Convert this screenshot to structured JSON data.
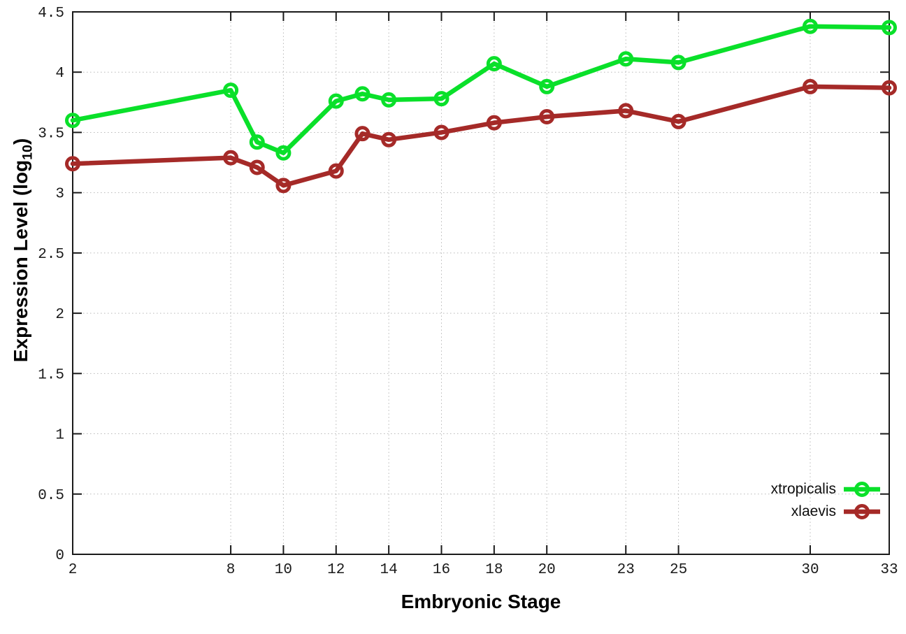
{
  "chart_data": {
    "type": "line",
    "title": "",
    "xlabel": "Embryonic Stage",
    "ylabel_prefix": "Expression Level (log",
    "ylabel_sub": "10",
    "ylabel_suffix": ")",
    "x": [
      2,
      8,
      9,
      10,
      12,
      13,
      14,
      16,
      18,
      20,
      23,
      25,
      30,
      33
    ],
    "xtick_labels": [
      "2",
      "8",
      "10",
      "12",
      "14",
      "16",
      "18",
      "20",
      "23",
      "25",
      "30",
      "33"
    ],
    "xticks": [
      2,
      8,
      10,
      12,
      14,
      16,
      18,
      20,
      23,
      25,
      30,
      33
    ],
    "ytick_labels": [
      "0",
      "0.5",
      "1",
      "1.5",
      "2",
      "2.5",
      "3",
      "3.5",
      "4",
      "4.5"
    ],
    "yticks": [
      0,
      0.5,
      1,
      1.5,
      2,
      2.5,
      3,
      3.5,
      4,
      4.5
    ],
    "xlim": [
      2,
      33
    ],
    "ylim": [
      0,
      4.5
    ],
    "grid": true,
    "legend_position": "inside-bottom-right",
    "series": [
      {
        "name": "xtropicalis",
        "color": "#0ae02a",
        "values": [
          3.6,
          3.85,
          3.42,
          3.33,
          3.76,
          3.82,
          3.77,
          3.78,
          4.07,
          3.88,
          4.11,
          4.08,
          4.38,
          4.37
        ]
      },
      {
        "name": "xlaevis",
        "color": "#a52a28",
        "values": [
          3.24,
          3.29,
          3.21,
          3.06,
          3.18,
          3.49,
          3.44,
          3.5,
          3.58,
          3.63,
          3.68,
          3.59,
          3.88,
          3.87
        ]
      }
    ],
    "colors": {
      "axis": "#1a1a1a",
      "grid": "#b8b8b8",
      "tick_text": "#1a1a1a",
      "background": "#ffffff"
    }
  }
}
